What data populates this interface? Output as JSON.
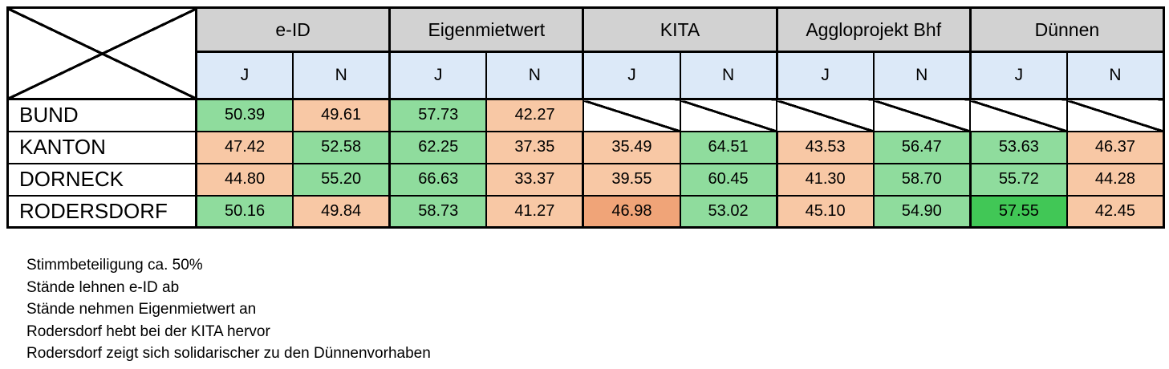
{
  "table": {
    "col_groups": [
      {
        "label": "e-ID"
      },
      {
        "label": "Eigenmietwert"
      },
      {
        "label": "KITA"
      },
      {
        "label": "Aggloprojekt Bhf"
      },
      {
        "label": "Dünnen"
      }
    ],
    "sub_headers": {
      "yes": "J",
      "no": "N"
    },
    "rows": [
      {
        "label": "BUND",
        "cells": [
          {
            "v": "50.39",
            "c": "green"
          },
          {
            "v": "49.61",
            "c": "orange"
          },
          {
            "v": "57.73",
            "c": "green"
          },
          {
            "v": "42.27",
            "c": "orange"
          },
          {
            "v": "",
            "c": "crossed"
          },
          {
            "v": "",
            "c": "crossed"
          },
          {
            "v": "",
            "c": "crossed"
          },
          {
            "v": "",
            "c": "crossed"
          },
          {
            "v": "",
            "c": "crossed"
          },
          {
            "v": "",
            "c": "crossed"
          }
        ]
      },
      {
        "label": "KANTON",
        "cells": [
          {
            "v": "47.42",
            "c": "orange"
          },
          {
            "v": "52.58",
            "c": "green"
          },
          {
            "v": "62.25",
            "c": "green"
          },
          {
            "v": "37.35",
            "c": "orange"
          },
          {
            "v": "35.49",
            "c": "orange"
          },
          {
            "v": "64.51",
            "c": "green"
          },
          {
            "v": "43.53",
            "c": "orange"
          },
          {
            "v": "56.47",
            "c": "green"
          },
          {
            "v": "53.63",
            "c": "green"
          },
          {
            "v": "46.37",
            "c": "orange"
          }
        ]
      },
      {
        "label": "DORNECK",
        "cells": [
          {
            "v": "44.80",
            "c": "orange"
          },
          {
            "v": "55.20",
            "c": "green"
          },
          {
            "v": "66.63",
            "c": "green"
          },
          {
            "v": "33.37",
            "c": "orange"
          },
          {
            "v": "39.55",
            "c": "orange"
          },
          {
            "v": "60.45",
            "c": "green"
          },
          {
            "v": "41.30",
            "c": "orange"
          },
          {
            "v": "58.70",
            "c": "green"
          },
          {
            "v": "55.72",
            "c": "green"
          },
          {
            "v": "44.28",
            "c": "orange"
          }
        ]
      },
      {
        "label": "RODERSDORF",
        "cells": [
          {
            "v": "50.16",
            "c": "green"
          },
          {
            "v": "49.84",
            "c": "orange"
          },
          {
            "v": "58.73",
            "c": "green"
          },
          {
            "v": "41.27",
            "c": "orange"
          },
          {
            "v": "46.98",
            "c": "orange_strong"
          },
          {
            "v": "53.02",
            "c": "green"
          },
          {
            "v": "45.10",
            "c": "orange"
          },
          {
            "v": "54.90",
            "c": "green"
          },
          {
            "v": "57.55",
            "c": "green_strong"
          },
          {
            "v": "42.45",
            "c": "orange"
          }
        ]
      }
    ]
  },
  "notes": [
    "Stimmbeteiligung ca. 50%",
    "Stände lehnen e-ID ab",
    "Stände nehmen Eigenmietwert an",
    "Rodersdorf hebt bei der KITA hervor",
    "Rodersdorf zeigt sich solidarischer zu den Dünnenvorhaben"
  ],
  "colors": {
    "green": "#8FDC9D",
    "orange": "#F8C8A5",
    "green_strong": "#41C756",
    "orange_strong": "#F0A478",
    "header_gray": "#D2D2D2",
    "header_blue": "#DCE9F8",
    "border": "#000000"
  },
  "chart_data": {
    "type": "table",
    "title": "",
    "row_labels": [
      "BUND",
      "KANTON",
      "DORNECK",
      "RODERSDORF"
    ],
    "column_groups": [
      "e-ID",
      "Eigenmietwert",
      "KITA",
      "Aggloprojekt Bhf",
      "Dünnen"
    ],
    "sub_columns": [
      "J",
      "N"
    ],
    "values": [
      [
        50.39,
        49.61,
        57.73,
        42.27,
        null,
        null,
        null,
        null,
        null,
        null
      ],
      [
        47.42,
        52.58,
        62.25,
        37.35,
        35.49,
        64.51,
        43.53,
        56.47,
        53.63,
        46.37
      ],
      [
        44.8,
        55.2,
        66.63,
        33.37,
        39.55,
        60.45,
        41.3,
        58.7,
        55.72,
        44.28
      ],
      [
        50.16,
        49.84,
        58.73,
        41.27,
        46.98,
        53.02,
        45.1,
        54.9,
        57.55,
        42.45
      ]
    ],
    "color_coding": {
      "green": "majority side of vote",
      "orange": "minority side of vote",
      "strong_highlight_cells": [
        "RODERSDORF KITA J",
        "RODERSDORF Dünnen J"
      ],
      "crossed_out_cells": "BUND row for KITA, Aggloprojekt Bhf, Dünnen"
    },
    "annotations": [
      "Stimmbeteiligung ca. 50%",
      "Stände lehnen e-ID ab",
      "Stände nehmen Eigenmietwert an",
      "Rodersdorf hebt bei der KITA hervor",
      "Rodersdorf zeigt sich solidarischer zu den Dünnenvorhaben"
    ]
  }
}
